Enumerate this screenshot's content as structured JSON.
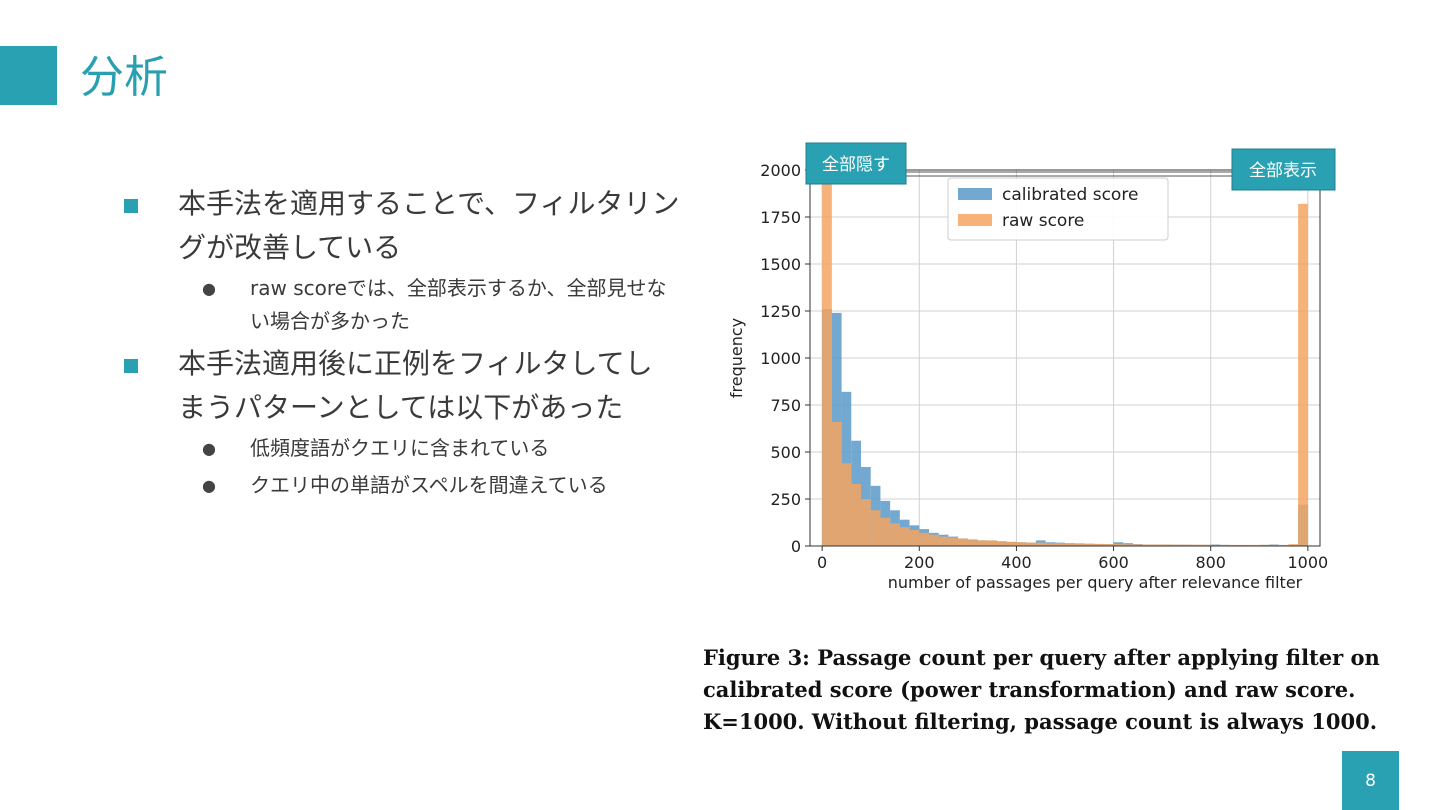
{
  "slide": {
    "title": "分析",
    "page_number": "8",
    "accent_color": "#2aa1b3"
  },
  "bullets": [
    {
      "text": "本手法を適用することで、フィルタリングが改善している",
      "subs": [
        "raw scoreでは、全部表示するか、全部見せない場合が多かった"
      ]
    },
    {
      "text": "本手法適用後に正例をフィルタしてしまうパターンとしては以下があった",
      "subs": [
        "低頻度語がクエリに含まれている",
        "クエリ中の単語がスペルを間違えている"
      ]
    }
  ],
  "chart_annotations": {
    "left_box": "全部隠す",
    "right_box": "全部表示"
  },
  "caption": "Figure 3: Passage count per query after applying filter on calibrated score (power transformation) and raw score. K=1000. Without filtering, passage count is always 1000.",
  "chart_data": {
    "type": "bar",
    "xlabel": "number of passages per query after relevance filter",
    "ylabel": "frequency",
    "xlim": [
      -25,
      1025
    ],
    "ylim": [
      0,
      2000
    ],
    "xticks": [
      0,
      200,
      400,
      600,
      800,
      1000
    ],
    "yticks": [
      0,
      250,
      500,
      750,
      1000,
      1250,
      1500,
      1750,
      2000
    ],
    "grid": true,
    "legend_position": "top-center",
    "bin_width": 20,
    "bin_starts": [
      0,
      20,
      40,
      60,
      80,
      100,
      120,
      140,
      160,
      180,
      200,
      220,
      240,
      260,
      280,
      300,
      320,
      340,
      360,
      380,
      400,
      420,
      440,
      460,
      480,
      500,
      520,
      540,
      560,
      580,
      600,
      620,
      640,
      660,
      680,
      700,
      720,
      740,
      760,
      780,
      800,
      820,
      840,
      860,
      880,
      900,
      920,
      940,
      960,
      980
    ],
    "series": [
      {
        "name": "calibrated score",
        "color": "#5a9ac8",
        "values": [
          1260,
          1240,
          820,
          560,
          420,
          320,
          240,
          190,
          140,
          110,
          90,
          70,
          60,
          50,
          40,
          35,
          30,
          28,
          25,
          22,
          20,
          18,
          30,
          20,
          18,
          15,
          14,
          12,
          11,
          10,
          20,
          15,
          10,
          8,
          8,
          8,
          7,
          7,
          6,
          6,
          8,
          6,
          5,
          5,
          4,
          6,
          8,
          4,
          6,
          220
        ]
      },
      {
        "name": "raw score",
        "color": "#f4a460",
        "values": [
          1940,
          660,
          440,
          330,
          250,
          190,
          150,
          120,
          100,
          85,
          70,
          60,
          50,
          45,
          40,
          35,
          30,
          30,
          25,
          22,
          20,
          18,
          18,
          15,
          15,
          14,
          13,
          12,
          11,
          10,
          10,
          9,
          9,
          8,
          8,
          8,
          7,
          7,
          7,
          7,
          6,
          6,
          6,
          6,
          6,
          6,
          6,
          6,
          10,
          1820
        ]
      }
    ]
  }
}
